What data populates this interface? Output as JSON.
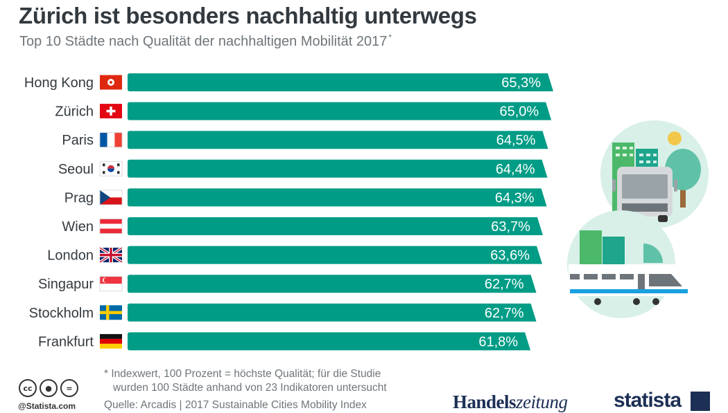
{
  "title": "Zürich ist besonders nachhaltig unterwegs",
  "subtitle": "Top 10 Städte nach Qualität der nachhaltigen Mobilität 2017",
  "subtitle_mark": "*",
  "colors": {
    "bar": "#009c86",
    "title": "#333a3f",
    "text": "#6e757a",
    "brand": "#1c2f55"
  },
  "chart_data": {
    "type": "bar",
    "orientation": "horizontal",
    "categories": [
      "Hong Kong",
      "Zürich",
      "Paris",
      "Seoul",
      "Prag",
      "Wien",
      "London",
      "Singapur",
      "Stockholm",
      "Frankfurt"
    ],
    "values": [
      65.3,
      65.0,
      64.5,
      64.4,
      64.3,
      63.7,
      63.6,
      62.7,
      62.7,
      61.8
    ],
    "value_labels": [
      "65,3%",
      "65,0%",
      "64,5%",
      "64,4%",
      "64,3%",
      "63,7%",
      "63,6%",
      "62,7%",
      "62,7%",
      "61,8%"
    ],
    "flags": [
      "hong-kong-flag",
      "switzerland-flag",
      "france-flag",
      "south-korea-flag",
      "czech-flag",
      "austria-flag",
      "uk-flag",
      "singapore-flag",
      "sweden-flag",
      "germany-flag"
    ],
    "xlim": [
      0,
      65.3
    ],
    "grid": false,
    "legend": "none"
  },
  "footnote": {
    "line1": "* Indexwert, 100 Prozent = höchste Qualität; für die Studie",
    "line2": "wurden 100 Städte anhand von 23 Indikatoren untersucht"
  },
  "source": "Quelle: Arcadis | 2017 Sustainable Cities Mobility Index",
  "attribution": "@Statista.com",
  "license_icons": [
    "cc-icon",
    "by-icon",
    "nd-icon"
  ],
  "brands": {
    "handelszeitung_a": "Handels",
    "handelszeitung_b": "zeitung",
    "statista": "statista"
  }
}
